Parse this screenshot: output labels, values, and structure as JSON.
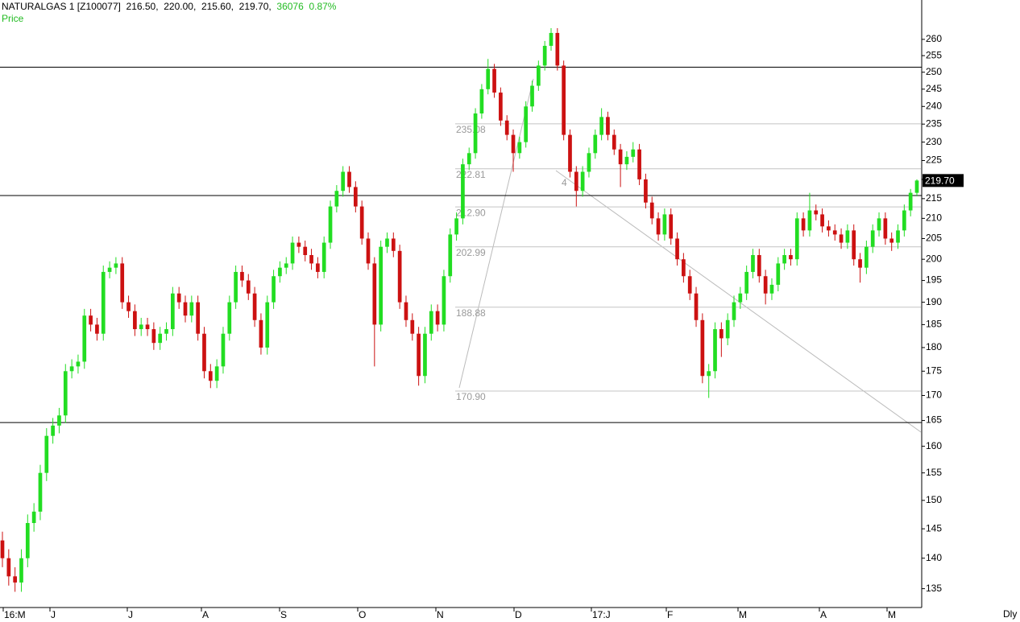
{
  "chart_data": {
    "type": "candlestick",
    "header": {
      "symbol": "NATURALGAS 1 [Z100077]",
      "open": "216.50,",
      "high": "220.00,",
      "low": "215.60,",
      "close": "219.70,",
      "volume": "36076",
      "change": "0.87%"
    },
    "subtitle": "Price",
    "period": "Dly",
    "annotation": "4",
    "log_scale": true,
    "ylim": [
      132,
      272.5
    ],
    "yticks": [
      135,
      140,
      145,
      150,
      155,
      160,
      165,
      170,
      175,
      180,
      185,
      190,
      195,
      200,
      205,
      210,
      215,
      220,
      225,
      230,
      235,
      240,
      245,
      250,
      255,
      260
    ],
    "categories": [
      "16:M",
      "J",
      "J",
      "A",
      "S",
      "O",
      "N",
      "D",
      "17:J",
      "F",
      "M",
      "A",
      "M"
    ],
    "up_color": "#22dd22",
    "down_color": "#cc1111",
    "last_price": {
      "value": 219.7,
      "label": "219.70"
    },
    "levels": [
      251.5,
      215.8,
      164.6
    ],
    "fib_levels": [
      235.08,
      222.81,
      {
        "value": 212.9,
        "label": "212.90"
      },
      202.99,
      188.88,
      {
        "value": 170.9,
        "label": "170.90"
      }
    ],
    "ohlc": [
      [
        143,
        144.5,
        138.5,
        140
      ],
      [
        140,
        141.5,
        135.5,
        137
      ],
      [
        137,
        138.5,
        134.5,
        136
      ],
      [
        136,
        141.5,
        134.5,
        140
      ],
      [
        140,
        147.5,
        138.5,
        146
      ],
      [
        146,
        149.5,
        144.5,
        148
      ],
      [
        148,
        156.5,
        146.5,
        155
      ],
      [
        155,
        163.5,
        153.5,
        162
      ],
      [
        162,
        165.5,
        160.5,
        164
      ],
      [
        164,
        167.5,
        162.5,
        166
      ],
      [
        166,
        176.5,
        164.5,
        175
      ],
      [
        175,
        177.5,
        173.5,
        176
      ],
      [
        176,
        178.5,
        174.5,
        177
      ],
      [
        177,
        188.5,
        175.5,
        187
      ],
      [
        187,
        188.5,
        183.5,
        185
      ],
      [
        185,
        186.5,
        181.5,
        183
      ],
      [
        183,
        198.5,
        181.5,
        197
      ],
      [
        197,
        199.5,
        195.5,
        198
      ],
      [
        198,
        200.5,
        196.5,
        199
      ],
      [
        199,
        200.5,
        188.5,
        190
      ],
      [
        190,
        191.5,
        186.5,
        188
      ],
      [
        188,
        189.5,
        182.5,
        184
      ],
      [
        184,
        186.5,
        182.5,
        185
      ],
      [
        185,
        186.5,
        182.5,
        184
      ],
      [
        184,
        185.5,
        179.5,
        181
      ],
      [
        181,
        184.5,
        179.5,
        183
      ],
      [
        183,
        185.5,
        181.5,
        184
      ],
      [
        184,
        193.5,
        182.5,
        192
      ],
      [
        192,
        193.5,
        188.5,
        190
      ],
      [
        190,
        191.5,
        185.5,
        187
      ],
      [
        187,
        191.5,
        185.5,
        190
      ],
      [
        190,
        191.5,
        181.5,
        183
      ],
      [
        183,
        184.5,
        173.5,
        175
      ],
      [
        175,
        176.5,
        171.5,
        173
      ],
      [
        173,
        177.5,
        171.5,
        176
      ],
      [
        176,
        184.5,
        174.5,
        183
      ],
      [
        183,
        191.5,
        181.5,
        190
      ],
      [
        190,
        198.5,
        188.5,
        197
      ],
      [
        197,
        198.5,
        193.5,
        195
      ],
      [
        195,
        196.5,
        190.5,
        192
      ],
      [
        192,
        193.5,
        184.5,
        186
      ],
      [
        186,
        187.5,
        178.5,
        180
      ],
      [
        180,
        191.5,
        178.5,
        190
      ],
      [
        190,
        197.5,
        188.5,
        196
      ],
      [
        196,
        199.5,
        194.5,
        198
      ],
      [
        198,
        200.5,
        196.5,
        199
      ],
      [
        199,
        205.5,
        197.5,
        204
      ],
      [
        204,
        205.5,
        201.5,
        203
      ],
      [
        203,
        204.5,
        199.5,
        201
      ],
      [
        201,
        202.5,
        197.5,
        199
      ],
      [
        199,
        200.5,
        195.5,
        197
      ],
      [
        197,
        205.5,
        195.5,
        204
      ],
      [
        204,
        214.5,
        202.5,
        213
      ],
      [
        213,
        218.5,
        211.5,
        217
      ],
      [
        217,
        223.5,
        215.5,
        222
      ],
      [
        222,
        223.5,
        216.5,
        218
      ],
      [
        218,
        219.5,
        211.5,
        213
      ],
      [
        213,
        214.5,
        203.5,
        205
      ],
      [
        205,
        206.5,
        197.5,
        199
      ],
      [
        199,
        200.5,
        176,
        185
      ],
      [
        185,
        204.5,
        183.5,
        203
      ],
      [
        203,
        206.5,
        201.5,
        205
      ],
      [
        205,
        206.5,
        200.5,
        202
      ],
      [
        202,
        203.5,
        188.5,
        190
      ],
      [
        190,
        191.5,
        184.5,
        186
      ],
      [
        186,
        187.5,
        181.5,
        183
      ],
      [
        183,
        184.5,
        172,
        174
      ],
      [
        174,
        184.5,
        172.5,
        183
      ],
      [
        183,
        189.5,
        181.5,
        188
      ],
      [
        188,
        189.5,
        183.5,
        185
      ],
      [
        185,
        197.5,
        183.5,
        196
      ],
      [
        196,
        207.5,
        194.5,
        206
      ],
      [
        206,
        211.5,
        204.5,
        210
      ],
      [
        210,
        225.5,
        208.5,
        224
      ],
      [
        224,
        228.5,
        222.5,
        227
      ],
      [
        227,
        239.5,
        225.5,
        238
      ],
      [
        238,
        246.5,
        236.5,
        245
      ],
      [
        245,
        254,
        243.5,
        251
      ],
      [
        251,
        252.5,
        242.5,
        244
      ],
      [
        244,
        245.5,
        234.5,
        236
      ],
      [
        236,
        237.5,
        230.5,
        232
      ],
      [
        232,
        233.5,
        222,
        227
      ],
      [
        227,
        231.5,
        225.5,
        230
      ],
      [
        230,
        241.5,
        228.5,
        240
      ],
      [
        240,
        247.5,
        238.5,
        246
      ],
      [
        246,
        253.5,
        244.5,
        252
      ],
      [
        252,
        259.5,
        250.5,
        258
      ],
      [
        258,
        263.5,
        256.5,
        262
      ],
      [
        262,
        263.5,
        250.5,
        252
      ],
      [
        252,
        253.5,
        230.5,
        232
      ],
      [
        232,
        233.5,
        220.5,
        222
      ],
      [
        222,
        223.5,
        213,
        217
      ],
      [
        217,
        223.5,
        215.5,
        222
      ],
      [
        222,
        228.5,
        220.5,
        227
      ],
      [
        227,
        233.5,
        225.5,
        232
      ],
      [
        232,
        239.5,
        230.5,
        237
      ],
      [
        237,
        238.5,
        230.5,
        232
      ],
      [
        232,
        233.5,
        226.5,
        228
      ],
      [
        228,
        229.5,
        218,
        224
      ],
      [
        224,
        227.5,
        222.5,
        226
      ],
      [
        226,
        230,
        224.5,
        228
      ],
      [
        228,
        229.5,
        218.5,
        220
      ],
      [
        220,
        221.5,
        212.5,
        214
      ],
      [
        214,
        215.5,
        208.5,
        210
      ],
      [
        210,
        211.5,
        204.5,
        206
      ],
      [
        206,
        212.5,
        204.5,
        211
      ],
      [
        211,
        212.5,
        203.5,
        205
      ],
      [
        205,
        206.5,
        198.5,
        200
      ],
      [
        200,
        201.5,
        194.5,
        196
      ],
      [
        196,
        197.5,
        190.5,
        192
      ],
      [
        192,
        193.5,
        184.5,
        186
      ],
      [
        186,
        187.5,
        172.5,
        174
      ],
      [
        174,
        176.5,
        169.5,
        175
      ],
      [
        175,
        185.5,
        173.5,
        184
      ],
      [
        184,
        185.5,
        178,
        182
      ],
      [
        182,
        187.5,
        180.5,
        186
      ],
      [
        186,
        191.5,
        184.5,
        190
      ],
      [
        190,
        193.5,
        188.5,
        192
      ],
      [
        192,
        198.5,
        190.5,
        197
      ],
      [
        197,
        202.5,
        195.5,
        201
      ],
      [
        201,
        202.5,
        194.5,
        196
      ],
      [
        196,
        197.5,
        189.5,
        192
      ],
      [
        192,
        195.5,
        190.5,
        194
      ],
      [
        194,
        200.5,
        192.5,
        199
      ],
      [
        199,
        202.5,
        197.5,
        201
      ],
      [
        201,
        202.5,
        198.5,
        200
      ],
      [
        200,
        211.5,
        198.5,
        210
      ],
      [
        210,
        211.5,
        205.5,
        207
      ],
      [
        207,
        216.5,
        205.5,
        212
      ],
      [
        212,
        213.5,
        209.5,
        211
      ],
      [
        211,
        212.5,
        206.5,
        208
      ],
      [
        208,
        209.5,
        205.5,
        207
      ],
      [
        207,
        208.5,
        204.5,
        206
      ],
      [
        206,
        207.5,
        202.5,
        204
      ],
      [
        204,
        208.5,
        202.5,
        207
      ],
      [
        207,
        208.5,
        198.5,
        200
      ],
      [
        200,
        201.5,
        194.5,
        198
      ],
      [
        198,
        204.5,
        196.5,
        203
      ],
      [
        203,
        208.5,
        201.5,
        207
      ],
      [
        207,
        211.5,
        205.5,
        210
      ],
      [
        210,
        211.5,
        203.5,
        205
      ],
      [
        205,
        206.5,
        202,
        204
      ],
      [
        204,
        208.5,
        202.5,
        207
      ],
      [
        207,
        213.5,
        205.5,
        212
      ],
      [
        212,
        217.5,
        210.5,
        216.5
      ],
      [
        216.5,
        220,
        215.6,
        219.7
      ]
    ]
  }
}
